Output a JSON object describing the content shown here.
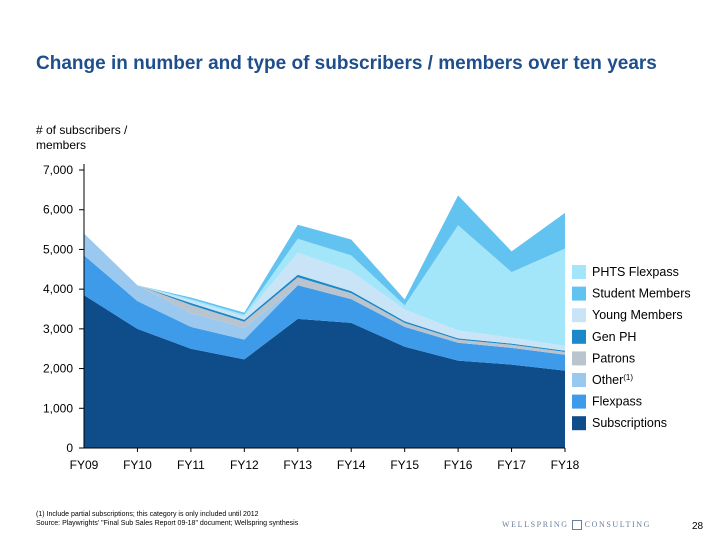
{
  "page": {
    "title": "Change in number and type of subscribers / members over ten years",
    "footnote_line1": "(1) Include partial subscriptions; this category is only included until 2012",
    "footnote_line2": "Source: Playwrights' \"Final Sub Sales Report 09-18\" document; Wellspring synthesis",
    "logo_left": "WELLSPRING",
    "logo_right": "CONSULTING",
    "page_number": "28"
  },
  "chart_data": {
    "type": "area",
    "stacked": true,
    "title": "Change in number and type of subscribers / members over ten years",
    "ylabel": "# of subscribers / members",
    "xlabel": "",
    "ylim": [
      0,
      7000
    ],
    "y_ticks": [
      "7,000",
      "6,000",
      "5,000",
      "4,000",
      "3,000",
      "2,000",
      "1,000",
      "0"
    ],
    "y_tick_values": [
      7000,
      6000,
      5000,
      4000,
      3000,
      2000,
      1000,
      0
    ],
    "categories": [
      "FY09",
      "FY10",
      "FY11",
      "FY12",
      "FY13",
      "FY14",
      "FY15",
      "FY16",
      "FY17",
      "FY18"
    ],
    "grid": false,
    "legend_position": "right",
    "series": [
      {
        "name": "Subscriptions",
        "color": "#0f4c8a",
        "values": [
          3850,
          3000,
          2500,
          2230,
          3250,
          3150,
          2550,
          2200,
          2100,
          1950
        ]
      },
      {
        "name": "Flexpass",
        "color": "#3d9be9",
        "values": [
          1000,
          700,
          550,
          500,
          850,
          600,
          500,
          450,
          420,
          400
        ]
      },
      {
        "name": "Other",
        "name_sup": "(1)",
        "color": "#9ac8ee",
        "values": [
          550,
          400,
          350,
          300,
          0,
          0,
          0,
          0,
          0,
          0
        ]
      },
      {
        "name": "Patrons",
        "color": "#b9c4ce",
        "values": [
          0,
          0,
          200,
          150,
          200,
          150,
          100,
          80,
          80,
          70
        ]
      },
      {
        "name": "Gen PH",
        "color": "#1a88c9",
        "values": [
          0,
          0,
          50,
          50,
          60,
          50,
          40,
          30,
          30,
          30
        ]
      },
      {
        "name": "Young Members",
        "color": "#c9e4f7",
        "values": [
          0,
          0,
          60,
          80,
          560,
          500,
          300,
          200,
          150,
          120
        ]
      },
      {
        "name": "PHTS Flexpass",
        "color": "#a3e5f9",
        "values": [
          0,
          0,
          40,
          50,
          350,
          400,
          100,
          2650,
          1650,
          2450
        ]
      },
      {
        "name": "Student Members",
        "color": "#63c3f0",
        "values": [
          0,
          0,
          40,
          50,
          350,
          400,
          150,
          750,
          520,
          900
        ]
      }
    ],
    "legend": [
      {
        "name": "PHTS Flexpass",
        "color": "#a3e5f9"
      },
      {
        "name": "Student Members",
        "color": "#63c3f0"
      },
      {
        "name": "Young Members",
        "color": "#c9e4f7"
      },
      {
        "name": "Gen PH",
        "color": "#1a88c9"
      },
      {
        "name": "Patrons",
        "color": "#b9c4ce"
      },
      {
        "name": "Other",
        "sup": "(1)",
        "color": "#9ac8ee"
      },
      {
        "name": "Flexpass",
        "color": "#3d9be9"
      },
      {
        "name": "Subscriptions",
        "color": "#0f4c8a"
      }
    ]
  }
}
